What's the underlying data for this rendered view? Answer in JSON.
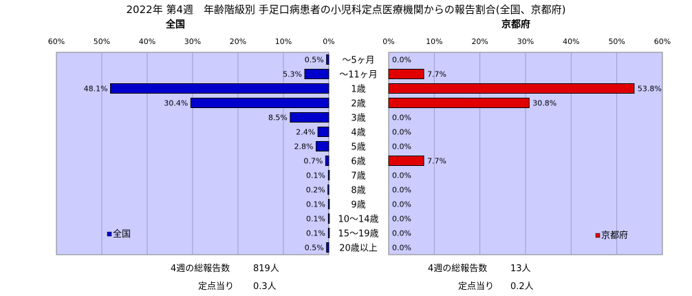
{
  "title": "2022年 第4週　年齢階級別 手足口病患者の小児科定点医療機関からの報告割合(全国、京都府)",
  "chart_data": {
    "type": "bar",
    "orientation": "horizontal",
    "categories": [
      "～5ヶ月",
      "～11ヶ月",
      "1歳",
      "2歳",
      "3歳",
      "4歳",
      "5歳",
      "6歳",
      "7歳",
      "8歳",
      "9歳",
      "10～14歳",
      "15～19歳",
      "20歳以上"
    ],
    "panels": [
      {
        "title": "全国",
        "series": [
          {
            "name": "全国",
            "values": [
              0.5,
              5.3,
              48.1,
              30.4,
              8.5,
              2.4,
              2.8,
              0.7,
              0.1,
              0.2,
              0.1,
              0.1,
              0.1,
              0.5
            ]
          }
        ],
        "value_labels": [
          "0.5%",
          "5.3%",
          "48.1%",
          "30.4%",
          "8.5%",
          "2.4%",
          "2.8%",
          "0.7%",
          "0.1%",
          "0.2%",
          "0.1%",
          "0.1%",
          "0.1%",
          "0.5%"
        ],
        "xlim": [
          0,
          60
        ],
        "direction": "reversed",
        "ticks": [
          "0%",
          "10%",
          "20%",
          "30%",
          "40%",
          "50%",
          "60%"
        ],
        "legend": "bottom-left",
        "color": "#0000cc"
      },
      {
        "title": "京都府",
        "series": [
          {
            "name": "京都府",
            "values": [
              0.0,
              7.7,
              53.8,
              30.8,
              0.0,
              0.0,
              0.0,
              7.7,
              0.0,
              0.0,
              0.0,
              0.0,
              0.0,
              0.0
            ]
          }
        ],
        "value_labels": [
          "0.0%",
          "7.7%",
          "53.8%",
          "30.8%",
          "0.0%",
          "0.0%",
          "0.0%",
          "7.7%",
          "0.0%",
          "0.0%",
          "0.0%",
          "0.0%",
          "0.0%",
          "0.0%"
        ],
        "xlim": [
          0,
          60
        ],
        "direction": "normal",
        "ticks": [
          "0%",
          "10%",
          "20%",
          "30%",
          "40%",
          "50%",
          "60%"
        ],
        "legend": "bottom-right",
        "color": "#e00000"
      }
    ],
    "plot_background": "#ccccff",
    "grid": true
  },
  "summary": {
    "national": {
      "total_label": "4週の総報告数",
      "total_value": "819人",
      "per_site_label": "定点当り",
      "per_site_value": "0.3人"
    },
    "kyoto": {
      "total_label": "4週の総報告数",
      "total_value": "13人",
      "per_site_label": "定点当り",
      "per_site_value": "0.2人"
    }
  }
}
